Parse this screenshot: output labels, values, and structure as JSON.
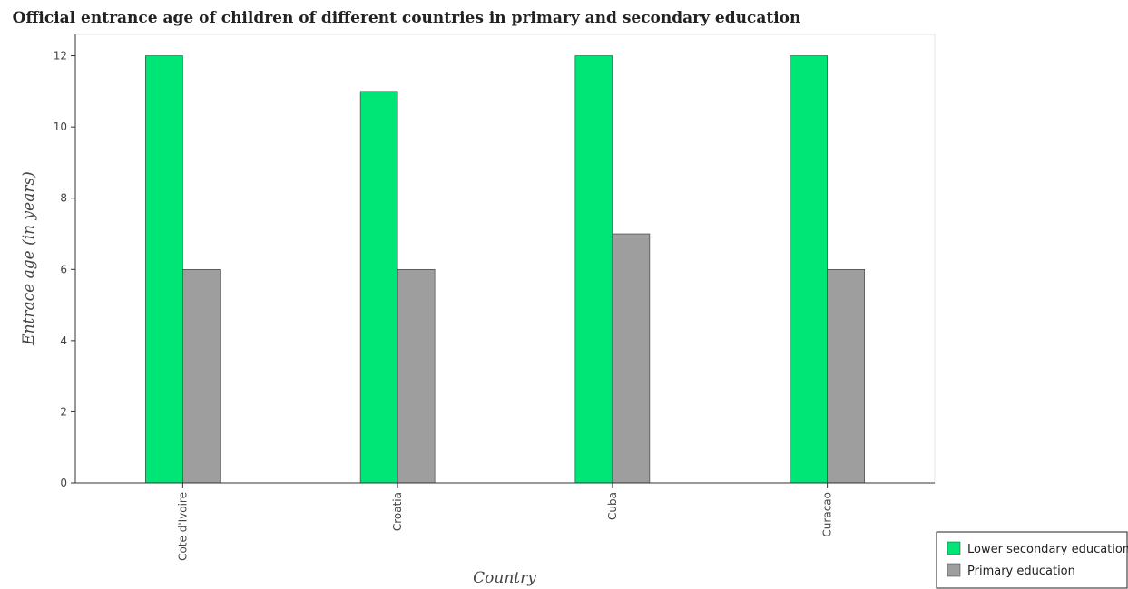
{
  "chart_data": {
    "type": "bar",
    "title": "Official entrance age of children of different countries in primary and secondary education",
    "xlabel": "Country",
    "ylabel": "Entrace age (in  years)",
    "categories": [
      "Cote d'Ivoire",
      "Croatia",
      "Cuba",
      "Curacao"
    ],
    "series": [
      {
        "name": "Lower secondary education",
        "values": [
          12,
          11,
          12,
          12
        ],
        "color": "#00e676"
      },
      {
        "name": "Primary education",
        "values": [
          6,
          6,
          7,
          6
        ],
        "color": "#9e9e9e"
      }
    ],
    "ylim": [
      0,
      12.6
    ],
    "yticks": [
      "0",
      "2",
      "4",
      "6",
      "8",
      "10",
      "12"
    ],
    "grid": false,
    "legend_position": "bottom-right"
  }
}
